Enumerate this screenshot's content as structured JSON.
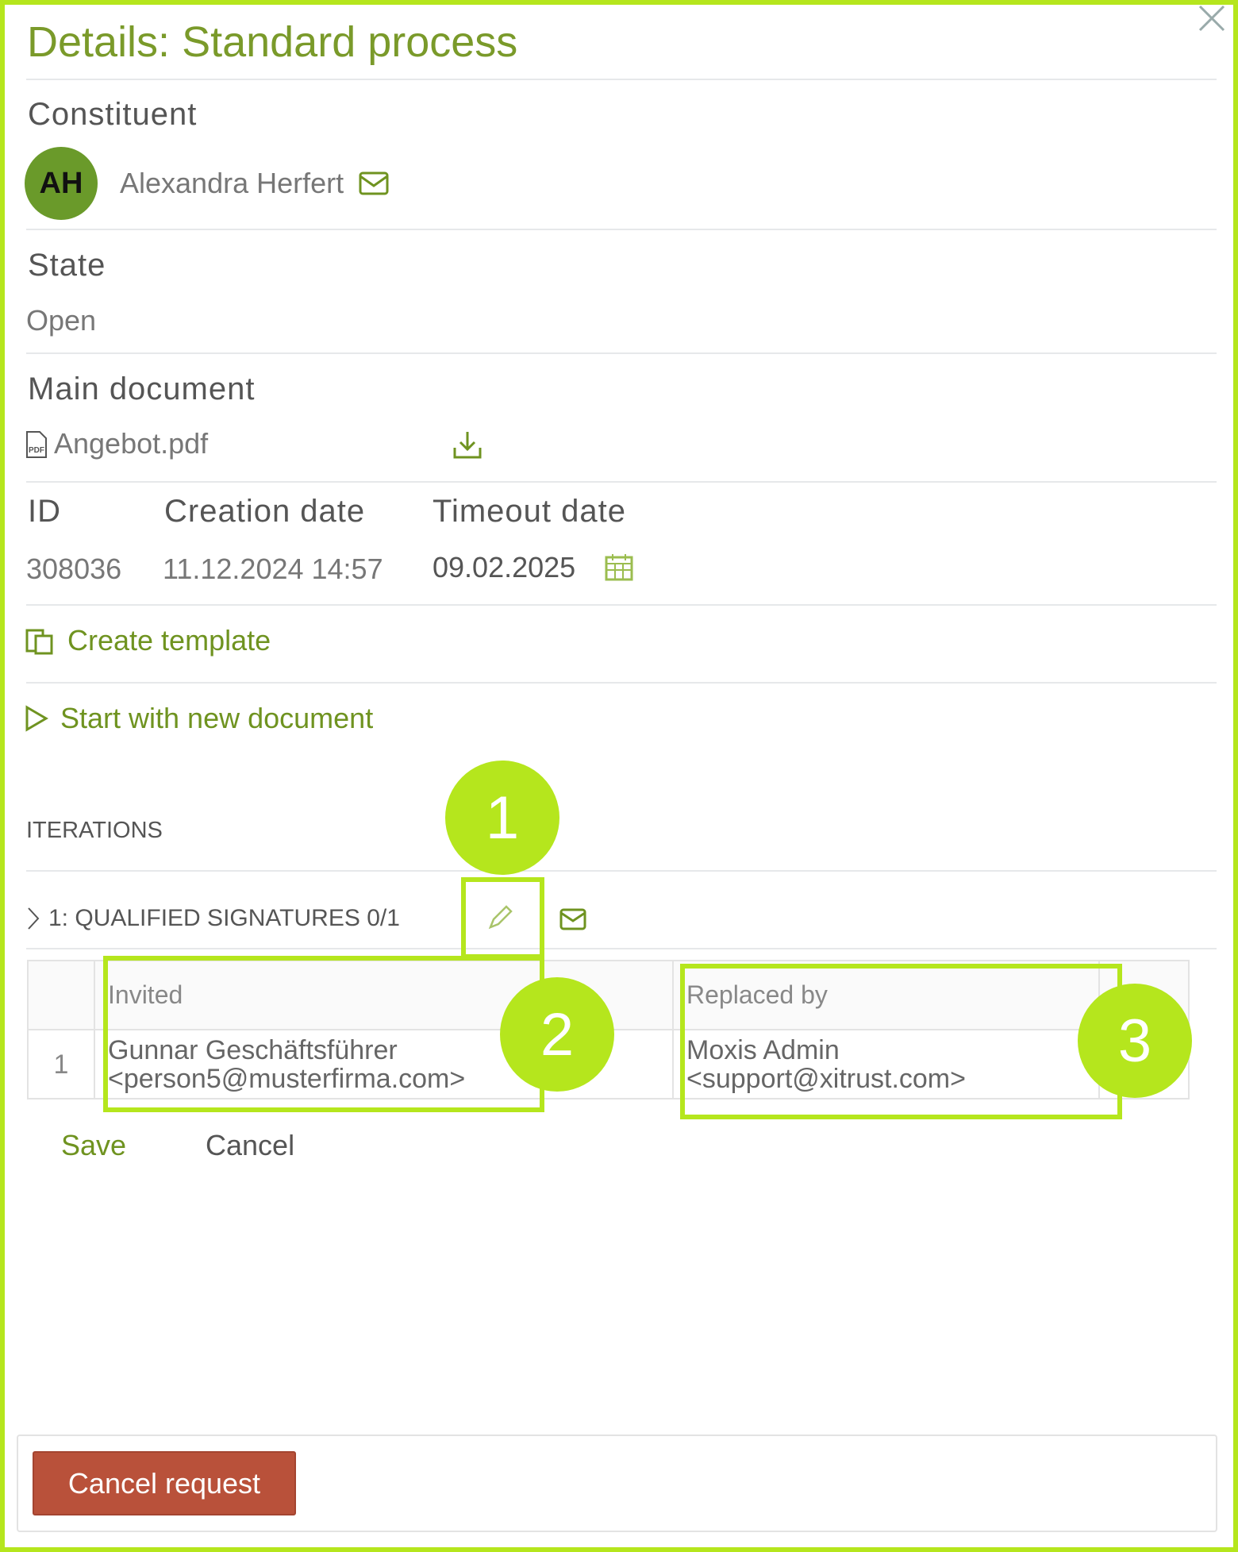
{
  "header": {
    "title": "Details: Standard process"
  },
  "constituent": {
    "label": "Constituent",
    "initials": "AH",
    "name": "Alexandra Herfert"
  },
  "state": {
    "label": "State",
    "value": "Open"
  },
  "main_document": {
    "label": "Main document",
    "file": "Angebot.pdf"
  },
  "meta": {
    "id_label": "ID",
    "id": "308036",
    "creation_label": "Creation date",
    "creation": "11.12.2024 14:57",
    "timeout_label": "Timeout date",
    "timeout": "09.02.2025"
  },
  "actions": {
    "create_template": "Create template",
    "start_new": "Start with new document"
  },
  "iterations": {
    "label": "ITERATIONS",
    "item": "1: QUALIFIED SIGNATURES 0/1",
    "table": {
      "headers": [
        "",
        "Invited",
        "Replaced by",
        ""
      ],
      "rows": [
        {
          "index": "1",
          "invited_name": "Gunnar Geschäftsführer",
          "invited_email": "<person5@musterfirma.com>",
          "replaced_name": "Moxis Admin",
          "replaced_email": "<support@xitrust.com>"
        }
      ]
    },
    "save": "Save",
    "cancel": "Cancel"
  },
  "footer": {
    "cancel_request": "Cancel request"
  },
  "annotations": [
    "1",
    "2",
    "3"
  ],
  "colors": {
    "accent": "#6f9320",
    "annotation": "#b5e61d",
    "danger": "#b9513a"
  }
}
